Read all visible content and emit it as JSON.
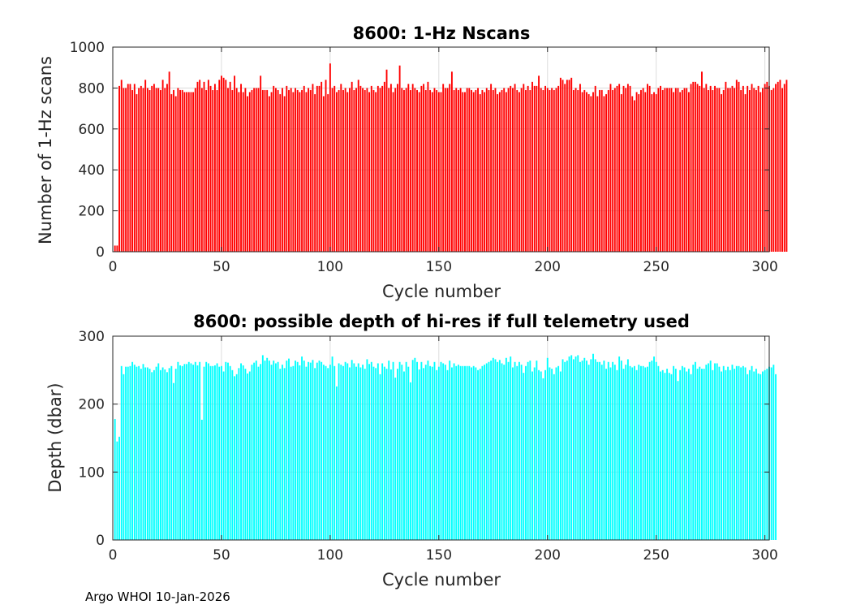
{
  "footer": "Argo WHOI 10-Jan-2026",
  "chart_data": [
    {
      "type": "bar",
      "title": "8600: 1-Hz Nscans",
      "xlabel": "Cycle number",
      "ylabel": "Number of 1-Hz scans",
      "xlim": [
        0,
        302
      ],
      "ylim": [
        0,
        1000
      ],
      "xticks": [
        0,
        50,
        100,
        150,
        200,
        250,
        300
      ],
      "yticks": [
        0,
        200,
        400,
        600,
        800,
        1000
      ],
      "grid": true,
      "color": "#ff0000",
      "x_start": 1,
      "values": [
        30,
        30,
        810,
        840,
        800,
        800,
        820,
        820,
        790,
        820,
        770,
        800,
        810,
        800,
        840,
        800,
        790,
        810,
        820,
        800,
        800,
        790,
        840,
        800,
        820,
        880,
        770,
        790,
        760,
        800,
        790,
        790,
        780,
        780,
        780,
        780,
        780,
        800,
        830,
        840,
        800,
        830,
        790,
        840,
        810,
        790,
        820,
        790,
        840,
        860,
        850,
        840,
        800,
        830,
        790,
        860,
        800,
        780,
        820,
        780,
        800,
        760,
        780,
        790,
        800,
        800,
        800,
        860,
        790,
        790,
        790,
        760,
        780,
        810,
        800,
        790,
        770,
        800,
        760,
        810,
        790,
        800,
        780,
        800,
        790,
        780,
        790,
        810,
        780,
        800,
        790,
        820,
        770,
        810,
        810,
        830,
        760,
        840,
        770,
        920,
        800,
        810,
        780,
        790,
        820,
        790,
        800,
        780,
        800,
        830,
        790,
        800,
        840,
        810,
        800,
        790,
        800,
        780,
        810,
        790,
        780,
        810,
        800,
        810,
        830,
        890,
        800,
        820,
        780,
        800,
        820,
        910,
        800,
        790,
        800,
        820,
        790,
        820,
        800,
        790,
        780,
        810,
        820,
        790,
        830,
        790,
        780,
        800,
        790,
        780,
        780,
        820,
        800,
        800,
        820,
        880,
        790,
        800,
        790,
        800,
        780,
        780,
        800,
        800,
        790,
        780,
        790,
        800,
        770,
        790,
        780,
        800,
        790,
        820,
        790,
        800,
        770,
        780,
        790,
        800,
        780,
        800,
        810,
        800,
        820,
        790,
        780,
        800,
        820,
        790,
        810,
        790,
        830,
        810,
        810,
        860,
        800,
        790,
        810,
        800,
        790,
        800,
        790,
        800,
        810,
        850,
        840,
        820,
        840,
        840,
        850,
        790,
        800,
        790,
        820,
        780,
        790,
        780,
        770,
        760,
        780,
        810,
        760,
        790,
        790,
        760,
        770,
        790,
        820,
        790,
        800,
        810,
        820,
        770,
        810,
        800,
        820,
        810,
        760,
        740,
        780,
        770,
        790,
        800,
        780,
        820,
        810,
        770,
        780,
        770,
        800,
        810,
        790,
        800,
        800,
        800,
        800,
        780,
        800,
        800,
        780,
        790,
        800,
        800,
        780,
        820,
        830,
        830,
        820,
        810,
        880,
        800,
        820,
        790,
        810,
        790,
        810,
        800,
        800,
        770,
        790,
        830,
        800,
        800,
        810,
        800,
        840,
        830,
        790,
        810,
        770,
        810,
        790,
        820,
        800,
        790,
        810,
        780,
        800,
        820,
        830,
        810,
        790,
        800,
        820,
        830,
        840,
        800,
        820,
        840
      ]
    },
    {
      "type": "bar",
      "title": "8600: possible depth of hi-res if full telemetry used",
      "xlabel": "Cycle number",
      "ylabel": "Depth (dbar)",
      "xlim": [
        0,
        302
      ],
      "ylim": [
        0,
        300
      ],
      "xticks": [
        0,
        50,
        100,
        150,
        200,
        250,
        300
      ],
      "yticks": [
        0,
        100,
        200,
        300
      ],
      "grid": true,
      "color": "#00ffff",
      "x_start": 1,
      "values": [
        178,
        145,
        152,
        256,
        244,
        255,
        255,
        256,
        262,
        258,
        255,
        256,
        252,
        259,
        254,
        254,
        252,
        247,
        250,
        255,
        260,
        250,
        254,
        251,
        247,
        253,
        256,
        231,
        252,
        262,
        257,
        256,
        259,
        259,
        262,
        260,
        258,
        262,
        257,
        262,
        177,
        255,
        262,
        260,
        256,
        256,
        257,
        260,
        255,
        256,
        248,
        262,
        261,
        256,
        250,
        241,
        244,
        253,
        260,
        257,
        252,
        245,
        248,
        258,
        261,
        264,
        255,
        259,
        272,
        264,
        268,
        264,
        258,
        264,
        260,
        262,
        252,
        258,
        253,
        264,
        267,
        255,
        256,
        264,
        262,
        257,
        270,
        264,
        255,
        262,
        261,
        265,
        253,
        261,
        264,
        262,
        258,
        256,
        253,
        258,
        270,
        256,
        226,
        260,
        258,
        256,
        262,
        260,
        254,
        265,
        260,
        255,
        260,
        254,
        258,
        252,
        266,
        259,
        262,
        255,
        253,
        260,
        244,
        260,
        255,
        252,
        264,
        251,
        262,
        239,
        252,
        262,
        258,
        248,
        262,
        255,
        232,
        265,
        268,
        262,
        251,
        262,
        253,
        258,
        264,
        256,
        255,
        262,
        250,
        255,
        262,
        260,
        258,
        250,
        264,
        254,
        260,
        256,
        258,
        256,
        256,
        256,
        256,
        256,
        254,
        256,
        254,
        250,
        252,
        256,
        258,
        260,
        262,
        264,
        268,
        266,
        262,
        265,
        260,
        258,
        268,
        262,
        270,
        254,
        262,
        256,
        262,
        258,
        246,
        256,
        262,
        264,
        248,
        254,
        264,
        250,
        248,
        238,
        250,
        268,
        254,
        252,
        244,
        254,
        256,
        248,
        266,
        262,
        264,
        270,
        272,
        266,
        270,
        272,
        262,
        264,
        268,
        264,
        258,
        266,
        274,
        266,
        262,
        262,
        258,
        264,
        252,
        262,
        254,
        262,
        258,
        250,
        270,
        264,
        252,
        258,
        266,
        256,
        254,
        256,
        250,
        258,
        256,
        256,
        254,
        255,
        262,
        264,
        270,
        262,
        256,
        248,
        250,
        246,
        252,
        246,
        244,
        256,
        252,
        234,
        250,
        256,
        254,
        248,
        252,
        244,
        258,
        262,
        252,
        255,
        252,
        252,
        258,
        260,
        264,
        250,
        260,
        260,
        255,
        248,
        256,
        250,
        255,
        250,
        258,
        252,
        256,
        256,
        254,
        256,
        254,
        244,
        250,
        256,
        248,
        252,
        245,
        244,
        248,
        250,
        252,
        255,
        254,
        258,
        244
      ]
    }
  ]
}
